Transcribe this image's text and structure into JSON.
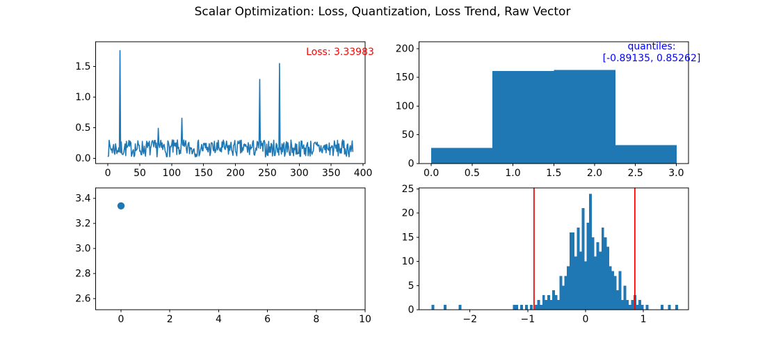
{
  "figure": {
    "title": "Scalar Optimization: Loss, Quantization, Loss Trend, Raw Vector",
    "background": "#ffffff",
    "text_color": "#000000"
  },
  "colors": {
    "series_blue": "#1f77b4",
    "annotation_red": "#ff0000",
    "annotation_blue": "#0000ff",
    "axis_black": "#000000"
  },
  "chart_data": [
    {
      "id": "loss-per-element",
      "type": "line",
      "position": "top-left",
      "line_color": "#1f77b4",
      "xlim": [
        -19.2,
        403.2
      ],
      "ylim": [
        -0.088,
        1.905
      ],
      "xticks": [
        0,
        50,
        100,
        150,
        200,
        250,
        300,
        350,
        400
      ],
      "xtick_labels": [
        "0",
        "50",
        "100",
        "150",
        "200",
        "250",
        "300",
        "350",
        "400"
      ],
      "yticks": [
        0.0,
        0.5,
        1.0,
        1.5
      ],
      "ytick_labels": [
        "0.0",
        "0.5",
        "1.0",
        "1.5"
      ],
      "n_points": 385,
      "baseline_noise": {
        "min": 0.02,
        "max": 0.3,
        "seed": 7
      },
      "spikes": [
        {
          "x": 19,
          "y": 1.76
        },
        {
          "x": 79,
          "y": 0.49
        },
        {
          "x": 116,
          "y": 0.655
        },
        {
          "x": 238,
          "y": 1.29
        },
        {
          "x": 269,
          "y": 1.55
        }
      ],
      "annotation": {
        "text": "Loss: 3.33983",
        "color": "#ff0000"
      }
    },
    {
      "id": "quantized-histogram",
      "type": "bar",
      "position": "top-right",
      "bar_color": "#1f77b4",
      "xlim": [
        -0.15,
        3.15
      ],
      "ylim": [
        0,
        212
      ],
      "xticks": [
        0.0,
        0.5,
        1.0,
        1.5,
        2.0,
        2.5,
        3.0
      ],
      "xtick_labels": [
        "0.0",
        "0.5",
        "1.0",
        "1.5",
        "2.0",
        "2.5",
        "3.0"
      ],
      "yticks": [
        0,
        50,
        100,
        150,
        200
      ],
      "ytick_labels": [
        "0",
        "50",
        "100",
        "150",
        "200"
      ],
      "bin_edges": [
        0.0,
        0.75,
        1.5,
        2.25,
        3.0
      ],
      "values": [
        27,
        161,
        163,
        32
      ],
      "annotation": {
        "lines": [
          "quantiles:",
          "[-0.89135, 0.85262]"
        ],
        "color": "#0000ff"
      }
    },
    {
      "id": "loss-trend",
      "type": "scatter",
      "position": "bottom-left",
      "marker_color": "#1f77b4",
      "xlim": [
        -1.04,
        10.0
      ],
      "ylim": [
        2.511,
        3.483
      ],
      "xticks": [
        0,
        2,
        4,
        6,
        8,
        10
      ],
      "xtick_labels": [
        "0",
        "2",
        "4",
        "6",
        "8",
        "10"
      ],
      "yticks": [
        2.6,
        2.8,
        3.0,
        3.2,
        3.4
      ],
      "ytick_labels": [
        "2.6",
        "2.8",
        "3.0",
        "3.2",
        "3.4"
      ],
      "points": [
        {
          "x": 0,
          "y": 3.33983
        }
      ]
    },
    {
      "id": "raw-vector-histogram",
      "type": "histogram",
      "position": "bottom-right",
      "bar_color": "#1f77b4",
      "vline_color": "#ff0000",
      "xlim": [
        -2.88,
        1.78
      ],
      "ylim": [
        0,
        25.2
      ],
      "xticks": [
        -2,
        -1,
        0,
        1
      ],
      "xtick_labels": [
        "−2",
        "−1",
        "0",
        "1"
      ],
      "yticks": [
        0,
        5,
        10,
        15,
        20,
        25
      ],
      "ytick_labels": [
        "0",
        "5",
        "10",
        "15",
        "20",
        "25"
      ],
      "bin_start": -2.665,
      "bin_width": 0.0426,
      "counts": [
        1,
        0,
        0,
        0,
        0,
        1,
        0,
        0,
        0,
        0,
        0,
        1,
        0,
        0,
        0,
        0,
        0,
        0,
        0,
        0,
        0,
        0,
        0,
        0,
        0,
        0,
        0,
        0,
        0,
        0,
        0,
        0,
        0,
        1,
        1,
        0,
        1,
        0,
        1,
        0,
        1,
        0,
        1,
        2,
        1,
        3,
        2,
        3,
        2,
        4,
        3,
        2,
        7,
        5,
        7,
        9,
        16,
        16,
        11,
        17,
        12,
        21,
        10,
        18,
        24,
        15,
        11,
        14,
        12,
        17,
        15,
        13,
        9,
        8,
        7,
        4,
        8,
        2,
        5,
        2,
        1,
        2,
        3,
        1,
        2,
        1,
        0,
        1,
        0,
        0,
        0,
        0,
        0,
        1,
        0,
        0,
        1,
        0,
        0,
        1
      ],
      "quantile_vlines": [
        -0.89135,
        0.85262
      ]
    }
  ]
}
